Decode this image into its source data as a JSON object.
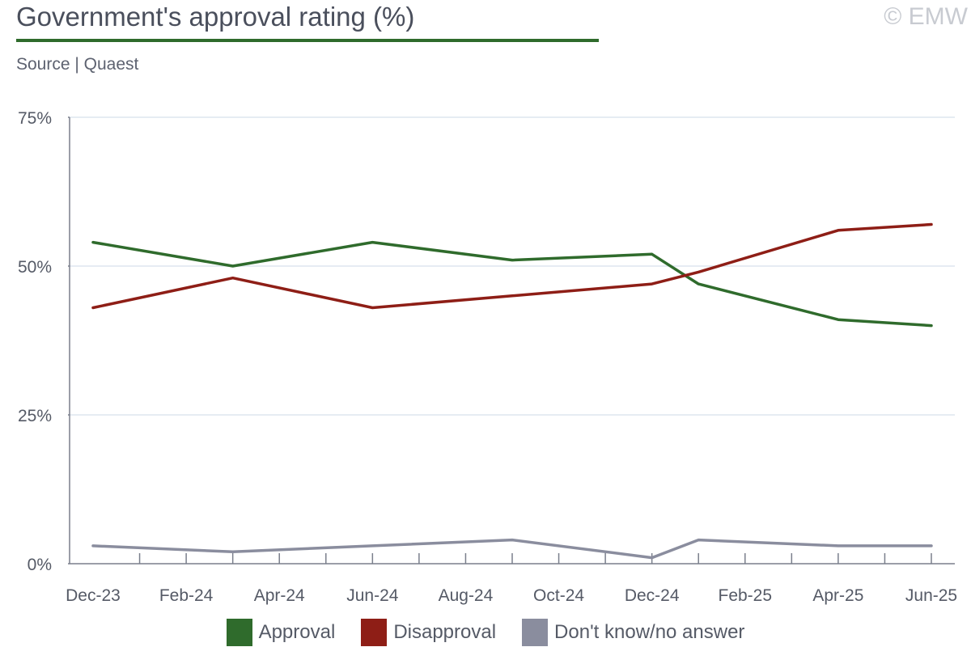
{
  "header": {
    "title": "Government's approval rating (%)",
    "copyright": "© EMW",
    "source": "Source | Quaest"
  },
  "colors": {
    "title_rule": "#2f6b2c",
    "grid": "#dde6ef",
    "axis": "#7a7f8c"
  },
  "chart_data": {
    "type": "line",
    "title": "Government's approval rating (%)",
    "x_tick_labels": [
      "Dec-23",
      "Feb-24",
      "Apr-24",
      "Jun-24",
      "Aug-24",
      "Oct-24",
      "Dec-24",
      "Feb-25",
      "Apr-25",
      "Jun-25"
    ],
    "x_range": [
      "2023-12",
      "2025-06"
    ],
    "y_ticks": [
      0,
      25,
      50,
      75
    ],
    "y_tick_labels": [
      "0%",
      "25%",
      "50%",
      "75%"
    ],
    "ylim": [
      0,
      75
    ],
    "grid": true,
    "legend_position": "bottom",
    "series": [
      {
        "name": "Approval",
        "color": "#2f6b2c",
        "points": [
          {
            "x": "2023-12",
            "y": 54
          },
          {
            "x": "2024-03",
            "y": 50
          },
          {
            "x": "2024-06",
            "y": 54
          },
          {
            "x": "2024-09",
            "y": 51
          },
          {
            "x": "2024-12",
            "y": 52
          },
          {
            "x": "2025-01",
            "y": 47
          },
          {
            "x": "2025-04",
            "y": 41
          },
          {
            "x": "2025-06",
            "y": 40
          }
        ]
      },
      {
        "name": "Disapproval",
        "color": "#8e1e16",
        "points": [
          {
            "x": "2023-12",
            "y": 43
          },
          {
            "x": "2024-03",
            "y": 48
          },
          {
            "x": "2024-06",
            "y": 43
          },
          {
            "x": "2024-09",
            "y": 45
          },
          {
            "x": "2024-12",
            "y": 47
          },
          {
            "x": "2025-01",
            "y": 49
          },
          {
            "x": "2025-04",
            "y": 56
          },
          {
            "x": "2025-06",
            "y": 57
          }
        ]
      },
      {
        "name": "Don't know/no answer",
        "color": "#8a8d9e",
        "points": [
          {
            "x": "2023-12",
            "y": 3
          },
          {
            "x": "2024-03",
            "y": 2
          },
          {
            "x": "2024-06",
            "y": 3
          },
          {
            "x": "2024-09",
            "y": 4
          },
          {
            "x": "2024-12",
            "y": 1
          },
          {
            "x": "2025-01",
            "y": 4
          },
          {
            "x": "2025-04",
            "y": 3
          },
          {
            "x": "2025-06",
            "y": 3
          }
        ]
      }
    ]
  }
}
